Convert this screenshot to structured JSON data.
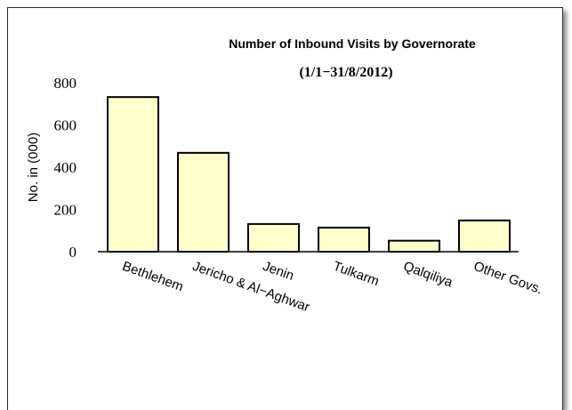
{
  "chart_data": {
    "type": "bar",
    "title": "Number of Inbound Visits by Governorate",
    "subtitle": "(1/1−31/8/2012)",
    "ylabel": "No. in (000)",
    "xlabel": "",
    "ylim": [
      0,
      800
    ],
    "yticks": [
      "0",
      "200",
      "400",
      "600",
      "800"
    ],
    "categories": [
      "Bethlehem",
      "Jericho & Al−Aghwar",
      "Jenin",
      "Tulkarm",
      "Qalqiliya",
      "Other Govs."
    ],
    "values": [
      732,
      468,
      131,
      114,
      52,
      148
    ],
    "bar_color": "#ffffcc",
    "grid": false,
    "legend": "none"
  }
}
